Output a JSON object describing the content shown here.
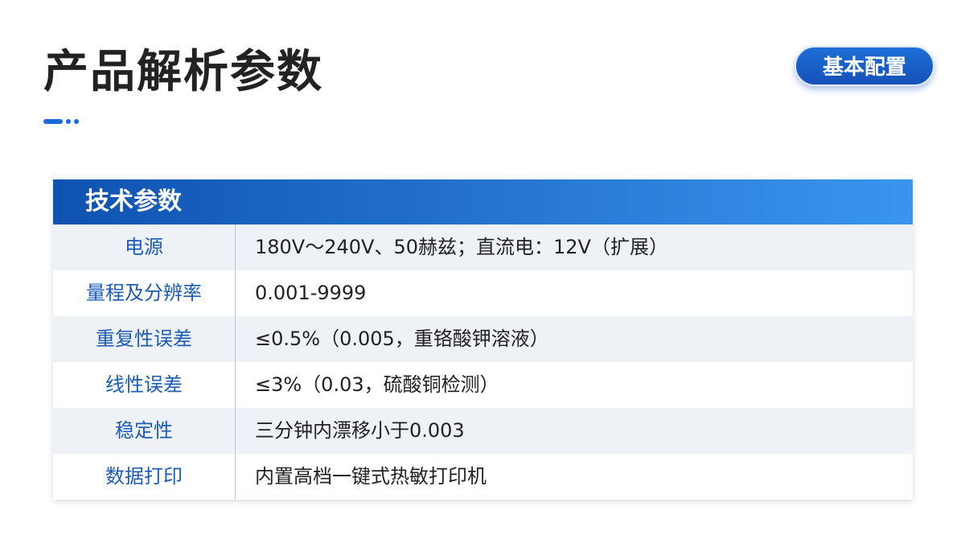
{
  "header": {
    "title": "产品解析参数",
    "badge": "基本配置"
  },
  "table": {
    "title": "技术参数",
    "rows": [
      [
        "电源",
        "180V～240V、50赫兹；直流电：12V（扩展）"
      ],
      [
        "量程及分辨率",
        "0.001-9999"
      ],
      [
        "重复性误差",
        "≤0.5%（0.005，重铬酸钾溶液）"
      ],
      [
        "线性误差",
        "≤3%（0.03，硫酸铜检测）"
      ],
      [
        "稳定性",
        "三分钟内漂移小于0.003"
      ],
      [
        "数据打印",
        "内置高档一键式热敏打印机"
      ]
    ]
  }
}
